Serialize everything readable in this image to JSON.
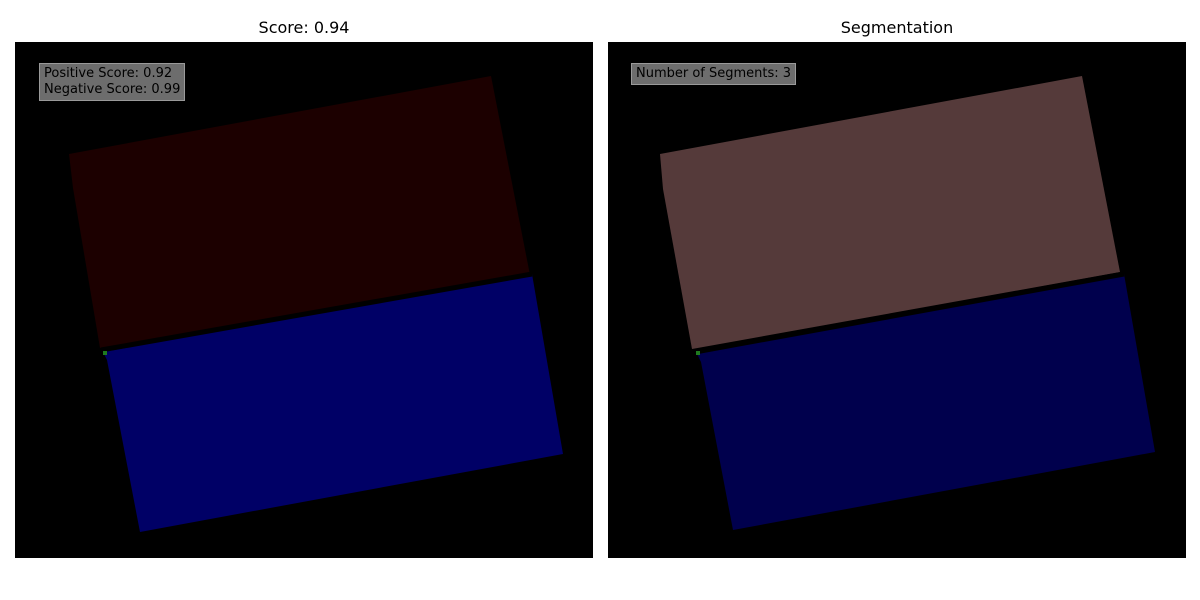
{
  "panels": {
    "left": {
      "title": "Score: 0.94",
      "positive_score": "Positive Score: 0.92",
      "negative_score": "Negative Score: 0.99"
    },
    "right": {
      "title": "Segmentation",
      "segments": "Number of Segments: 3"
    }
  },
  "colors": {
    "background": "#000000",
    "left_top_region": "#1c0000",
    "left_bottom_region": "#000066",
    "right_top_region": "#553a3a",
    "right_bottom_region": "#00004d",
    "seam": "#000000",
    "marker": "#1f7a1f"
  }
}
